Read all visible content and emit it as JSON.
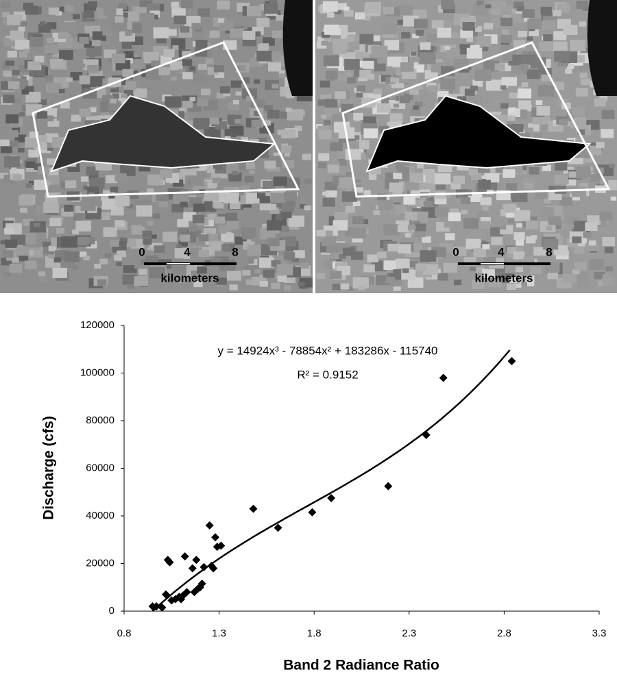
{
  "images": [
    {
      "scale_ticks": [
        "0",
        "4",
        "8"
      ],
      "scale_unit": "kilometers"
    },
    {
      "scale_ticks": [
        "0",
        "4",
        "8"
      ],
      "scale_unit": "kilometers"
    }
  ],
  "chart_data": {
    "type": "scatter",
    "x_label": "Band 2 Radiance Ratio",
    "y_label": "Discharge (cfs)",
    "x": [
      0.95,
      0.97,
      1.0,
      1.02,
      1.03,
      1.04,
      1.05,
      1.07,
      1.09,
      1.1,
      1.11,
      1.12,
      1.13,
      1.16,
      1.17,
      1.18,
      1.19,
      1.2,
      1.21,
      1.22,
      1.25,
      1.26,
      1.27,
      1.28,
      1.29,
      1.31,
      1.48,
      1.61,
      1.79,
      1.89,
      2.19,
      2.39,
      2.48,
      2.84
    ],
    "values": [
      2000,
      2000,
      1500,
      7000,
      21500,
      20500,
      4500,
      5000,
      6000,
      5000,
      6500,
      23000,
      8000,
      18000,
      8000,
      21500,
      9500,
      10000,
      11500,
      18500,
      36000,
      19000,
      18000,
      31000,
      27000,
      27500,
      43000,
      35000,
      41500,
      47500,
      52500,
      74000,
      98000,
      105000
    ],
    "color": "#000000",
    "trendline": {
      "equation": "y = 14924x³ - 78854x² + 183286x - 115740",
      "r_squared": "R² = 0.9152",
      "coefficients": [
        14924,
        -78854,
        183286,
        -115740
      ],
      "xrange": [
        0.95,
        2.83
      ]
    },
    "xlim": [
      0.8,
      3.3
    ],
    "xticks": [
      0.8,
      1.3,
      1.8,
      2.3,
      2.8,
      3.3
    ],
    "ylim": [
      0,
      120000
    ],
    "yticks": [
      0,
      20000,
      40000,
      60000,
      80000,
      100000,
      120000
    ],
    "grid": false
  }
}
